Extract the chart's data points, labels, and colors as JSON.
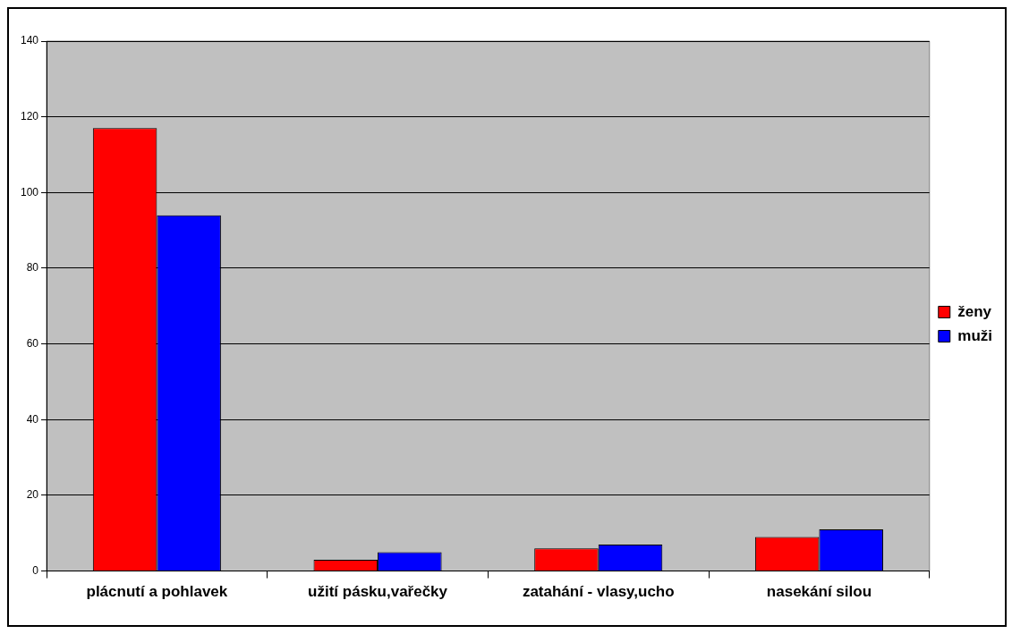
{
  "chart_data": {
    "type": "bar",
    "categories": [
      "plácnutí a pohlavek",
      "užití pásku,vařečky",
      "zatahání - vlasy,ucho",
      "nasekání silou"
    ],
    "series": [
      {
        "name": "ženy",
        "color": "#ff0000",
        "values": [
          117,
          3,
          6,
          9
        ]
      },
      {
        "name": "muži",
        "color": "#0000ff",
        "values": [
          94,
          5,
          7,
          11
        ]
      }
    ],
    "ylim": [
      0,
      140
    ],
    "yticks": [
      0,
      20,
      40,
      60,
      80,
      100,
      120,
      140
    ],
    "grid": "y",
    "legend": "right"
  }
}
